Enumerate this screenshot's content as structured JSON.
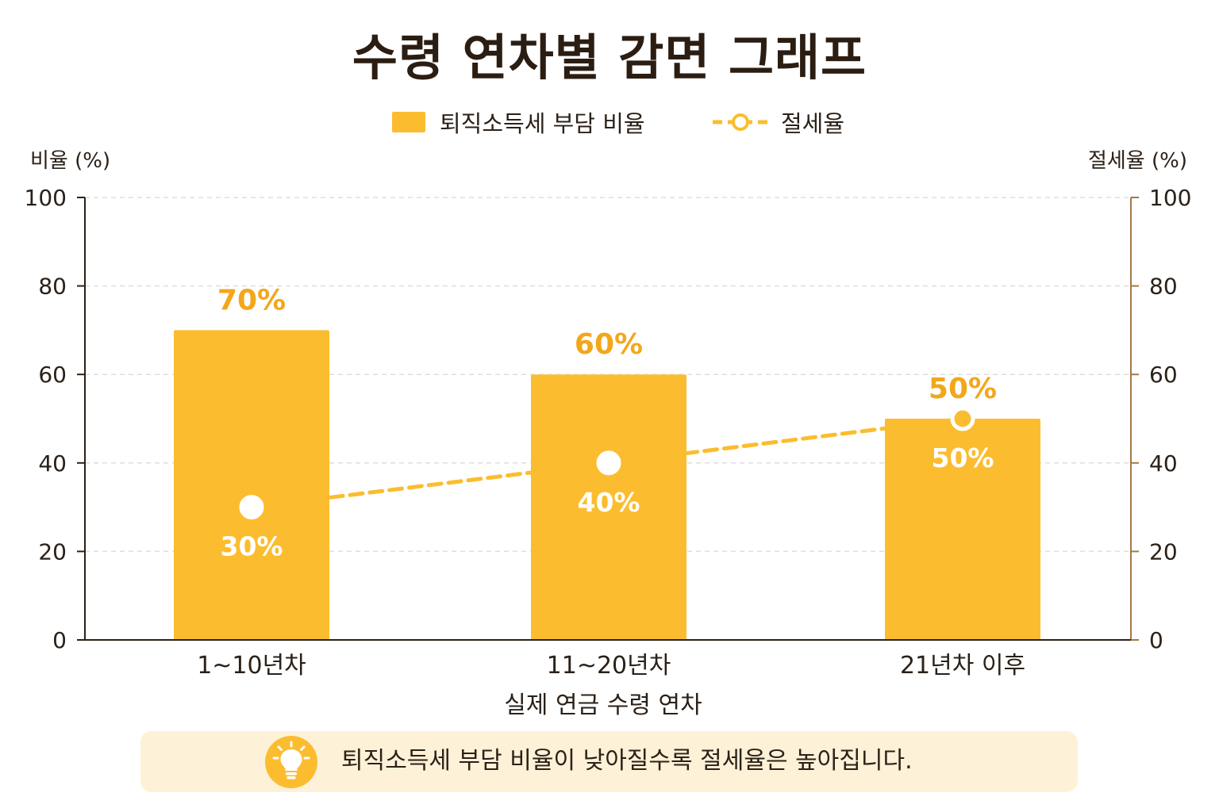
{
  "chart_data": {
    "type": "bar",
    "title": "수령 연차별 감면 그래프",
    "categories": [
      "1~10년차",
      "11~20년차",
      "21년차 이후"
    ],
    "xlabel": "실제 연금 수령 연차",
    "ylabel": "비율 (%)",
    "y2label": "절세율 (%)",
    "ylim": [
      0,
      100
    ],
    "y2lim": [
      0,
      100
    ],
    "yticks": [
      "0",
      "20",
      "40",
      "60",
      "80",
      "100"
    ],
    "y2ticks": [
      "0",
      "20",
      "40",
      "60",
      "80",
      "100"
    ],
    "grid": true,
    "legend_position": "top-center",
    "series": [
      {
        "name": "퇴직소득세 부담 비율",
        "kind": "bar",
        "axis": "left",
        "values": [
          70,
          60,
          50
        ],
        "labels": [
          "70%",
          "60%",
          "50%"
        ],
        "color": "#fbbd2f"
      },
      {
        "name": "절세율",
        "kind": "line",
        "style": "dashed",
        "axis": "right",
        "values": [
          30,
          40,
          50
        ],
        "labels": [
          "30%",
          "40%",
          "50%"
        ],
        "color": "#fbbd2f"
      }
    ]
  },
  "note": {
    "icon": "lightbulb-icon",
    "text": "퇴직소득세 부담 비율이 낮아질수록 절세율은 높아집니다."
  },
  "colors": {
    "bar": "#fbbd2f",
    "bar_label": "#f2a71b",
    "line": "#fbbd2f",
    "title": "#2b1d12",
    "axis_left": "#2b2118",
    "axis_right": "#a27a4a",
    "grid": "#dedede",
    "note_bg": "#fdf1d7"
  }
}
